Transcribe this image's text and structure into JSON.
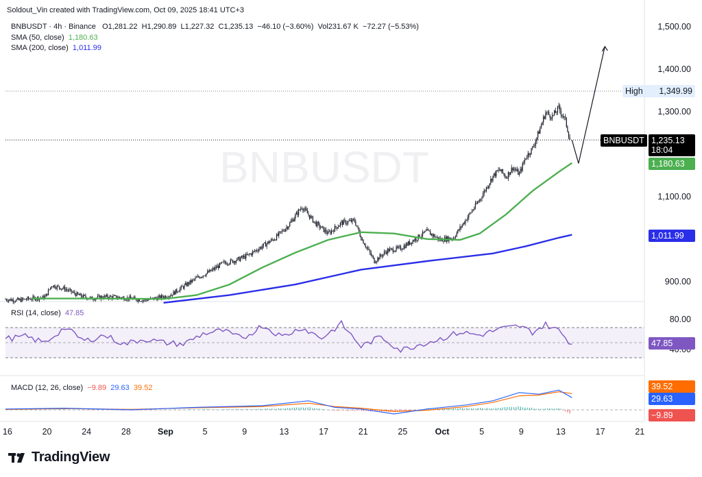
{
  "attribution": "Soldout_Vin created with TradingView.com, Oct 09, 2025 18:41 UTC+3",
  "logo_text": "TradingView",
  "watermark": "BNBUSDT",
  "ohlc": {
    "symbol": "BNBUSDT · 4h · Binance",
    "open": "O1,281.22",
    "high": "H1,290.89",
    "low": "L1,227.32",
    "close": "C1,235.13",
    "change": "−46.10 (−3.60%)",
    "volume": "Vol231.67 K",
    "vol_change": "−72.27 (−5.53%)"
  },
  "indicators": {
    "sma50_label": "SMA (50, close)",
    "sma50_value": "1,180.63",
    "sma200_label": "SMA (200, close)",
    "sma200_value": "1,011.99",
    "rsi_label": "RSI (14, close)",
    "rsi_value": "47.85",
    "macd_label": "MACD (12, 26, close)",
    "macd_hist": "−9.89",
    "macd_line": "29.63",
    "macd_signal": "39.52"
  },
  "colors": {
    "sma50": "#4caf50",
    "sma200": "#2a2ee8",
    "rsi": "#7e57c2",
    "macd": "#2962ff",
    "signal": "#ff6d00",
    "hist_up": "#26a69a",
    "hist_down": "#ef5350"
  },
  "tags": {
    "high_label": "High",
    "high_value": "1,349.99",
    "price_symbol": "BNBUSDT",
    "price_value": "1,235.13",
    "countdown": "18:04",
    "sma50": "1,180.63",
    "sma200": "1,011.99",
    "rsi": "47.85",
    "macd_signal": "39.52",
    "macd_line": "29.63",
    "macd_hist": "−9.89"
  },
  "chart_data": {
    "type": "candlestick",
    "price_axis": {
      "ticks": [
        "1,500.00",
        "1,400.00",
        "1,300.00",
        "1,100.00",
        "900.00"
      ],
      "tick_values": [
        1500,
        1400,
        1300,
        1100,
        900
      ],
      "range": [
        860,
        1520
      ]
    },
    "rsi_axis": {
      "ticks": [
        "80.00",
        "40.00"
      ],
      "tick_values": [
        80,
        40
      ],
      "band": [
        30,
        70
      ]
    },
    "x_ticks": [
      "16",
      "20",
      "24",
      "28",
      "Sep",
      "5",
      "9",
      "13",
      "17",
      "21",
      "25",
      "Oct",
      "5",
      "9",
      "13",
      "17",
      "21"
    ],
    "x_ticks_bold": [
      "Sep",
      "Oct"
    ],
    "x_range_days": [
      16,
      113
    ],
    "close_series": {
      "days": [
        16,
        18,
        20,
        22,
        23,
        25,
        27,
        29,
        31,
        33,
        35,
        37,
        39,
        41,
        43,
        45,
        47,
        49,
        51,
        53,
        55,
        57,
        59,
        61,
        63,
        65,
        67,
        69,
        70,
        72,
        74,
        76,
        78,
        80,
        82,
        84,
        86,
        88,
        90,
        91,
        92,
        93,
        94,
        95,
        96,
        97,
        98,
        99,
        100,
        101,
        101.7
      ],
      "values": [
        860,
        858,
        862,
        865,
        893,
        885,
        870,
        862,
        866,
        865,
        862,
        858,
        863,
        870,
        890,
        910,
        925,
        945,
        952,
        965,
        985,
        1005,
        1035,
        1078,
        1040,
        1015,
        1040,
        1045,
        1005,
        950,
        975,
        980,
        1000,
        1020,
        1000,
        1005,
        1050,
        1095,
        1150,
        1165,
        1148,
        1170,
        1155,
        1195,
        1215,
        1255,
        1300,
        1290,
        1310,
        1281,
        1235
      ]
    },
    "sma50_series": {
      "days": [
        20,
        30,
        40,
        45,
        50,
        55,
        60,
        65,
        70,
        75,
        80,
        85,
        88,
        92,
        96,
        100,
        102
      ],
      "values": [
        862,
        862,
        861,
        870,
        895,
        935,
        970,
        1000,
        1018,
        1015,
        1002,
        1000,
        1015,
        1060,
        1115,
        1160,
        1181
      ]
    },
    "sma200_series": {
      "days": [
        40,
        50,
        60,
        70,
        80,
        90,
        95,
        100,
        102
      ],
      "values": [
        852,
        870,
        895,
        930,
        950,
        968,
        985,
        1005,
        1012
      ]
    },
    "projection": {
      "from": [
        102,
        1235
      ],
      "mid": [
        103,
        1180
      ],
      "to": [
        107,
        1455
      ]
    },
    "high_value": 1349.99,
    "last_close": 1235.13,
    "rsi_series": {
      "days": [
        16,
        19,
        22,
        25,
        28,
        31,
        34,
        37,
        40,
        43,
        46,
        49,
        52,
        55,
        58,
        61,
        64,
        67,
        70,
        73,
        76,
        79,
        82,
        85,
        88,
        91,
        94,
        96,
        98,
        100,
        102
      ],
      "values": [
        55,
        58,
        50,
        70,
        52,
        60,
        48,
        55,
        50,
        48,
        62,
        66,
        55,
        73,
        58,
        70,
        56,
        75,
        45,
        58,
        40,
        48,
        55,
        64,
        60,
        68,
        72,
        64,
        74,
        66,
        47.85
      ]
    },
    "macd_series": {
      "days": [
        16,
        25,
        35,
        45,
        55,
        62,
        66,
        70,
        75,
        80,
        86,
        90,
        94,
        97,
        100,
        102
      ],
      "macd": [
        2,
        4,
        0,
        6,
        10,
        22,
        6,
        2,
        -10,
        2,
        12,
        22,
        42,
        38,
        48,
        29.63
      ],
      "signal": [
        1,
        3,
        1,
        5,
        8,
        16,
        8,
        4,
        -4,
        -1,
        8,
        18,
        34,
        36,
        44,
        39.52
      ],
      "histogram_last": -9.89
    }
  }
}
